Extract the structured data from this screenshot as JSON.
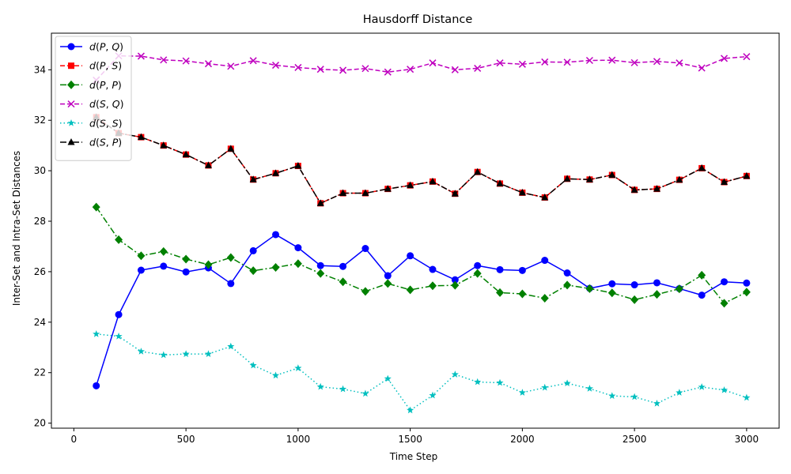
{
  "chart_data": {
    "type": "line",
    "title": "Hausdorff Distance",
    "xlabel": "Time Step",
    "ylabel": "Inter-Set and Intra-Set Distances",
    "ylabel_color": "#0000cc",
    "xlim": [
      -100,
      3145
    ],
    "ylim": [
      19.8,
      35.45
    ],
    "xticks": [
      0,
      500,
      1000,
      1500,
      2000,
      2500,
      3000
    ],
    "yticks": [
      20,
      22,
      24,
      26,
      28,
      30,
      32,
      34
    ],
    "grid": false,
    "legend_position": "upper left",
    "x": [
      100,
      200,
      300,
      400,
      500,
      600,
      700,
      800,
      900,
      1000,
      1100,
      1200,
      1300,
      1400,
      1500,
      1600,
      1700,
      1800,
      1900,
      2000,
      2100,
      2200,
      2300,
      2400,
      2500,
      2600,
      2700,
      2800,
      2900,
      3000
    ],
    "series": [
      {
        "name": "d(P,Q)",
        "label_parts": [
          "d",
          "P",
          "Q"
        ],
        "color": "#0000ff",
        "linestyle": "solid",
        "marker": "circle",
        "values": [
          21.48,
          24.3,
          26.06,
          26.22,
          25.99,
          26.15,
          25.53,
          26.83,
          27.47,
          26.95,
          26.24,
          26.21,
          26.92,
          25.84,
          26.63,
          26.09,
          25.68,
          26.24,
          26.08,
          26.05,
          26.45,
          25.95,
          25.34,
          25.52,
          25.48,
          25.56,
          25.33,
          25.07,
          25.6,
          25.55
        ]
      },
      {
        "name": "d(P,S)",
        "label_parts": [
          "d",
          "P",
          "S"
        ],
        "color": "#ff0000",
        "linestyle": "dashed",
        "marker": "square",
        "values": [
          32.12,
          31.49,
          31.33,
          31.0,
          30.64,
          30.21,
          30.87,
          29.65,
          29.9,
          30.19,
          28.71,
          29.11,
          29.11,
          29.28,
          29.42,
          29.57,
          29.09,
          29.95,
          29.49,
          29.13,
          28.94,
          29.68,
          29.65,
          29.83,
          29.24,
          29.28,
          29.64,
          30.1,
          29.55,
          29.79
        ]
      },
      {
        "name": "d(P,P)",
        "label_parts": [
          "d",
          "P",
          "P"
        ],
        "color": "#008000",
        "linestyle": "dashdot",
        "marker": "diamond",
        "values": [
          28.56,
          27.27,
          26.63,
          26.8,
          26.5,
          26.28,
          26.56,
          26.04,
          26.17,
          26.32,
          25.93,
          25.6,
          25.22,
          25.53,
          25.28,
          25.44,
          25.46,
          25.93,
          25.17,
          25.12,
          24.95,
          25.47,
          25.33,
          25.16,
          24.89,
          25.1,
          25.32,
          25.86,
          24.75,
          25.19
        ]
      },
      {
        "name": "d(S,Q)",
        "label_parts": [
          "d",
          "S",
          "Q"
        ],
        "color": "#bf00bf",
        "linestyle": "dashed",
        "marker": "x",
        "values": [
          33.59,
          34.55,
          34.54,
          34.39,
          34.35,
          34.24,
          34.14,
          34.36,
          34.18,
          34.09,
          34.02,
          33.98,
          34.05,
          33.91,
          34.02,
          34.27,
          34.0,
          34.06,
          34.27,
          34.22,
          34.31,
          34.3,
          34.37,
          34.38,
          34.28,
          34.33,
          34.27,
          34.07,
          34.45,
          34.52
        ]
      },
      {
        "name": "d(S,S)",
        "label_parts": [
          "d",
          "S",
          "S"
        ],
        "color": "#00bfbf",
        "linestyle": "dotted",
        "marker": "star",
        "values": [
          23.53,
          23.44,
          22.84,
          22.7,
          22.74,
          22.74,
          23.04,
          22.29,
          21.89,
          22.18,
          21.44,
          21.35,
          21.17,
          21.76,
          20.51,
          21.1,
          21.93,
          21.63,
          21.6,
          21.21,
          21.41,
          21.58,
          21.37,
          21.08,
          21.04,
          20.78,
          21.21,
          21.43,
          21.31,
          21.01
        ]
      },
      {
        "name": "d(S,P)",
        "label_parts": [
          "d",
          "S",
          "P"
        ],
        "color": "#000000",
        "linestyle": "dashdot",
        "marker": "triangle",
        "values": [
          32.12,
          31.49,
          31.33,
          31.0,
          30.64,
          30.21,
          30.87,
          29.65,
          29.9,
          30.19,
          28.71,
          29.11,
          29.11,
          29.28,
          29.42,
          29.57,
          29.09,
          29.95,
          29.49,
          29.13,
          28.94,
          29.68,
          29.65,
          29.83,
          29.24,
          29.28,
          29.64,
          30.1,
          29.55,
          29.79
        ]
      }
    ]
  }
}
